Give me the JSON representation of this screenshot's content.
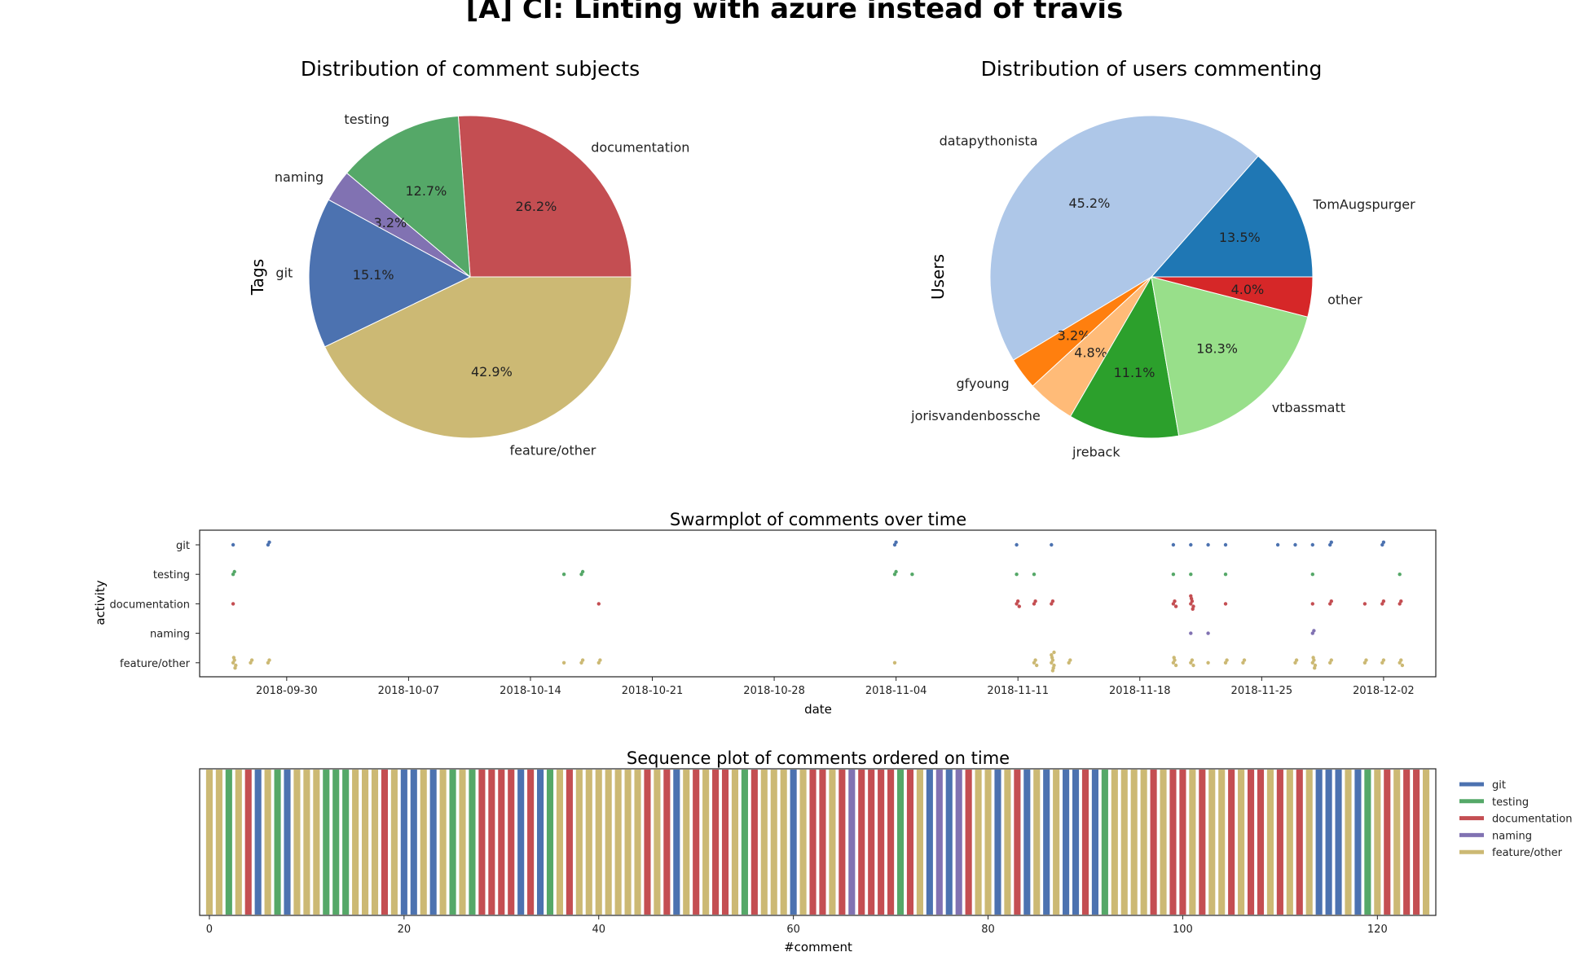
{
  "figure_title": "[A] CI: Linting with azure instead of travis",
  "colors": {
    "git": "#4c72b0",
    "testing": "#55a868",
    "documentation": "#c44e52",
    "naming": "#8172b2",
    "feature/other": "#ccb974"
  },
  "chart_data": [
    {
      "type": "pie",
      "title": "Distribution of comment subjects",
      "ylabel": "Tags",
      "slices": [
        {
          "label": "documentation",
          "pct": 26.2,
          "color": "#c44e52"
        },
        {
          "label": "testing",
          "pct": 12.7,
          "color": "#55a868"
        },
        {
          "label": "naming",
          "pct": 3.2,
          "color": "#8172b2"
        },
        {
          "label": "git",
          "pct": 15.1,
          "color": "#4c72b0"
        },
        {
          "label": "feature/other",
          "pct": 42.9,
          "color": "#ccb974"
        }
      ]
    },
    {
      "type": "pie",
      "title": "Distribution of users commenting",
      "ylabel": "Users",
      "slices": [
        {
          "label": "TomAugspurger",
          "pct": 13.5,
          "color": "#1f77b4"
        },
        {
          "label": "datapythonista",
          "pct": 45.2,
          "color": "#aec7e8"
        },
        {
          "label": "gfyoung",
          "pct": 3.2,
          "color": "#ff7f0e"
        },
        {
          "label": "jorisvandenbossche",
          "pct": 4.8,
          "color": "#ffbb78"
        },
        {
          "label": "jreback",
          "pct": 11.1,
          "color": "#2ca02c"
        },
        {
          "label": "vtbassmatt",
          "pct": 18.3,
          "color": "#98df8a"
        },
        {
          "label": "other",
          "pct": 4.0,
          "color": "#d62728"
        }
      ]
    },
    {
      "type": "scatter",
      "title": "Swarmplot of comments over time",
      "xlabel": "date",
      "ylabel": "activity",
      "categories": [
        "git",
        "testing",
        "documentation",
        "naming",
        "feature/other"
      ],
      "x_ticks": [
        "2018-09-30",
        "2018-10-07",
        "2018-10-14",
        "2018-10-21",
        "2018-10-28",
        "2018-11-04",
        "2018-11-11",
        "2018-11-18",
        "2018-11-25",
        "2018-12-02"
      ],
      "xlim": [
        "2018-09-25",
        "2018-12-05"
      ],
      "points": {
        "git": [
          "2018-09-27",
          "2018-09-29",
          "2018-09-29",
          "2018-11-04",
          "2018-11-04",
          "2018-11-11",
          "2018-11-13",
          "2018-11-20",
          "2018-11-21",
          "2018-11-22",
          "2018-11-23",
          "2018-11-26",
          "2018-11-27",
          "2018-11-28",
          "2018-11-29",
          "2018-11-29",
          "2018-12-02",
          "2018-12-02"
        ],
        "testing": [
          "2018-09-27",
          "2018-09-27",
          "2018-10-16",
          "2018-10-17",
          "2018-10-17",
          "2018-11-04",
          "2018-11-04",
          "2018-11-05",
          "2018-11-11",
          "2018-11-12",
          "2018-11-20",
          "2018-11-21",
          "2018-11-23",
          "2018-11-28",
          "2018-12-03"
        ],
        "documentation": [
          "2018-09-27",
          "2018-10-18",
          "2018-11-11",
          "2018-11-11",
          "2018-11-11",
          "2018-11-12",
          "2018-11-12",
          "2018-11-13",
          "2018-11-13",
          "2018-11-20",
          "2018-11-20",
          "2018-11-20",
          "2018-11-21",
          "2018-11-21",
          "2018-11-21",
          "2018-11-21",
          "2018-11-21",
          "2018-11-21",
          "2018-11-23",
          "2018-11-28",
          "2018-11-29",
          "2018-11-29",
          "2018-12-01",
          "2018-12-02",
          "2018-12-02",
          "2018-12-03",
          "2018-12-03"
        ],
        "naming": [
          "2018-11-21",
          "2018-11-22",
          "2018-11-28",
          "2018-11-28"
        ],
        "feature/other": [
          "2018-09-27",
          "2018-09-27",
          "2018-09-27",
          "2018-09-27",
          "2018-09-27",
          "2018-09-28",
          "2018-09-28",
          "2018-09-29",
          "2018-09-29",
          "2018-10-16",
          "2018-10-17",
          "2018-10-17",
          "2018-10-18",
          "2018-10-18",
          "2018-11-04",
          "2018-11-12",
          "2018-11-12",
          "2018-11-12",
          "2018-11-13",
          "2018-11-13",
          "2018-11-13",
          "2018-11-13",
          "2018-11-13",
          "2018-11-13",
          "2018-11-13",
          "2018-11-13",
          "2018-11-14",
          "2018-11-14",
          "2018-11-20",
          "2018-11-20",
          "2018-11-20",
          "2018-11-20",
          "2018-11-21",
          "2018-11-21",
          "2018-11-21",
          "2018-11-22",
          "2018-11-23",
          "2018-11-23",
          "2018-11-24",
          "2018-11-24",
          "2018-11-27",
          "2018-11-27",
          "2018-11-28",
          "2018-11-28",
          "2018-11-28",
          "2018-11-28",
          "2018-11-28",
          "2018-11-29",
          "2018-11-29",
          "2018-12-01",
          "2018-12-01",
          "2018-12-02",
          "2018-12-02",
          "2018-12-03",
          "2018-12-03",
          "2018-12-03"
        ]
      }
    },
    {
      "type": "bar",
      "title": "Sequence plot of comments ordered on time",
      "xlabel": "#comment",
      "x_ticks": [
        0,
        20,
        40,
        60,
        80,
        100,
        120
      ],
      "xlim": [
        -1,
        126
      ],
      "legend": [
        "git",
        "testing",
        "documentation",
        "naming",
        "feature/other"
      ],
      "legend_position": "right",
      "sequence": [
        "feature/other",
        "feature/other",
        "testing",
        "feature/other",
        "documentation",
        "git",
        "feature/other",
        "testing",
        "git",
        "feature/other",
        "feature/other",
        "feature/other",
        "testing",
        "testing",
        "testing",
        "feature/other",
        "feature/other",
        "feature/other",
        "documentation",
        "feature/other",
        "git",
        "git",
        "feature/other",
        "git",
        "feature/other",
        "testing",
        "feature/other",
        "testing",
        "documentation",
        "documentation",
        "documentation",
        "documentation",
        "git",
        "documentation",
        "git",
        "testing",
        "feature/other",
        "documentation",
        "feature/other",
        "feature/other",
        "feature/other",
        "feature/other",
        "feature/other",
        "feature/other",
        "feature/other",
        "documentation",
        "feature/other",
        "documentation",
        "git",
        "feature/other",
        "documentation",
        "feature/other",
        "documentation",
        "documentation",
        "feature/other",
        "testing",
        "documentation",
        "feature/other",
        "feature/other",
        "feature/other",
        "git",
        "feature/other",
        "documentation",
        "documentation",
        "feature/other",
        "documentation",
        "naming",
        "documentation",
        "documentation",
        "documentation",
        "documentation",
        "testing",
        "documentation",
        "feature/other",
        "git",
        "naming",
        "git",
        "naming",
        "documentation",
        "feature/other",
        "feature/other",
        "git",
        "feature/other",
        "documentation",
        "git",
        "feature/other",
        "git",
        "feature/other",
        "git",
        "git",
        "documentation",
        "git",
        "testing",
        "feature/other",
        "feature/other",
        "feature/other",
        "feature/other",
        "documentation",
        "feature/other",
        "documentation",
        "documentation",
        "feature/other",
        "documentation",
        "feature/other",
        "feature/other",
        "documentation",
        "feature/other",
        "documentation",
        "documentation",
        "feature/other",
        "documentation",
        "feature/other",
        "documentation",
        "feature/other",
        "git",
        "git",
        "git",
        "feature/other",
        "git",
        "testing",
        "feature/other",
        "documentation",
        "feature/other",
        "documentation",
        "documentation",
        "feature/other"
      ]
    }
  ]
}
